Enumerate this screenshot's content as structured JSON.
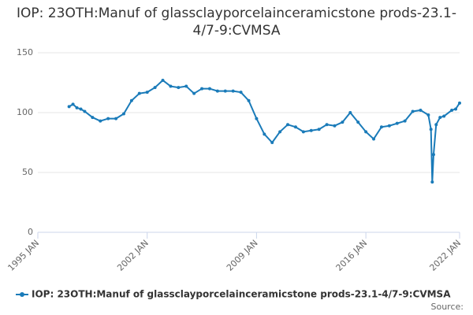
{
  "chart_data": {
    "type": "line",
    "title": "IOP: 23OTH:Manuf of glassclayporcelainceramicstone prods-23.1-4/7-9:CVMSA",
    "source": "Source:",
    "x": [
      "1997-01",
      "1997-04",
      "1997-07",
      "1997-10",
      "1998-01",
      "1998-07",
      "1999-01",
      "1999-07",
      "2000-01",
      "2000-07",
      "2001-01",
      "2001-07",
      "2002-01",
      "2002-07",
      "2003-01",
      "2003-07",
      "2004-01",
      "2004-07",
      "2005-01",
      "2005-07",
      "2006-01",
      "2006-07",
      "2007-01",
      "2007-07",
      "2008-01",
      "2008-07",
      "2009-01",
      "2009-07",
      "2010-01",
      "2010-07",
      "2011-01",
      "2011-07",
      "2012-01",
      "2012-07",
      "2013-01",
      "2013-07",
      "2014-01",
      "2014-07",
      "2015-01",
      "2015-07",
      "2016-01",
      "2016-07",
      "2017-01",
      "2017-07",
      "2018-01",
      "2018-07",
      "2019-01",
      "2019-07",
      "2020-01",
      "2020-03",
      "2020-04",
      "2020-05",
      "2020-07",
      "2020-10",
      "2021-01",
      "2021-07",
      "2021-10",
      "2022-01"
    ],
    "series": [
      {
        "name": "IOP: 23OTH:Manuf of glassclayporcelainceramicstone prods-23.1-4/7-9:CVMSA",
        "color": "#1a7bb9",
        "values": [
          105,
          107,
          104,
          103,
          101,
          96,
          93,
          95,
          95,
          99,
          110,
          116,
          117,
          121,
          127,
          122,
          121,
          122,
          116,
          120,
          120,
          118,
          118,
          118,
          117,
          110,
          95,
          82,
          75,
          84,
          90,
          88,
          84,
          85,
          86,
          90,
          89,
          92,
          100,
          92,
          84,
          78,
          88,
          89,
          91,
          93,
          101,
          102,
          98,
          86,
          42,
          65,
          90,
          96,
          97,
          102,
          103,
          108
        ]
      }
    ],
    "xlim": [
      "1995-01",
      "2022-01"
    ],
    "xticks": [
      {
        "value": "1995-01",
        "label": "1995 JAN"
      },
      {
        "value": "2002-01",
        "label": "2002 JAN"
      },
      {
        "value": "2009-01",
        "label": "2009 JAN"
      },
      {
        "value": "2016-01",
        "label": "2016 JAN"
      },
      {
        "value": "2022-01",
        "label": "2022 JAN"
      }
    ],
    "ylim": [
      0,
      150
    ],
    "yticks": [
      0,
      50,
      100,
      150
    ],
    "grid": true
  }
}
